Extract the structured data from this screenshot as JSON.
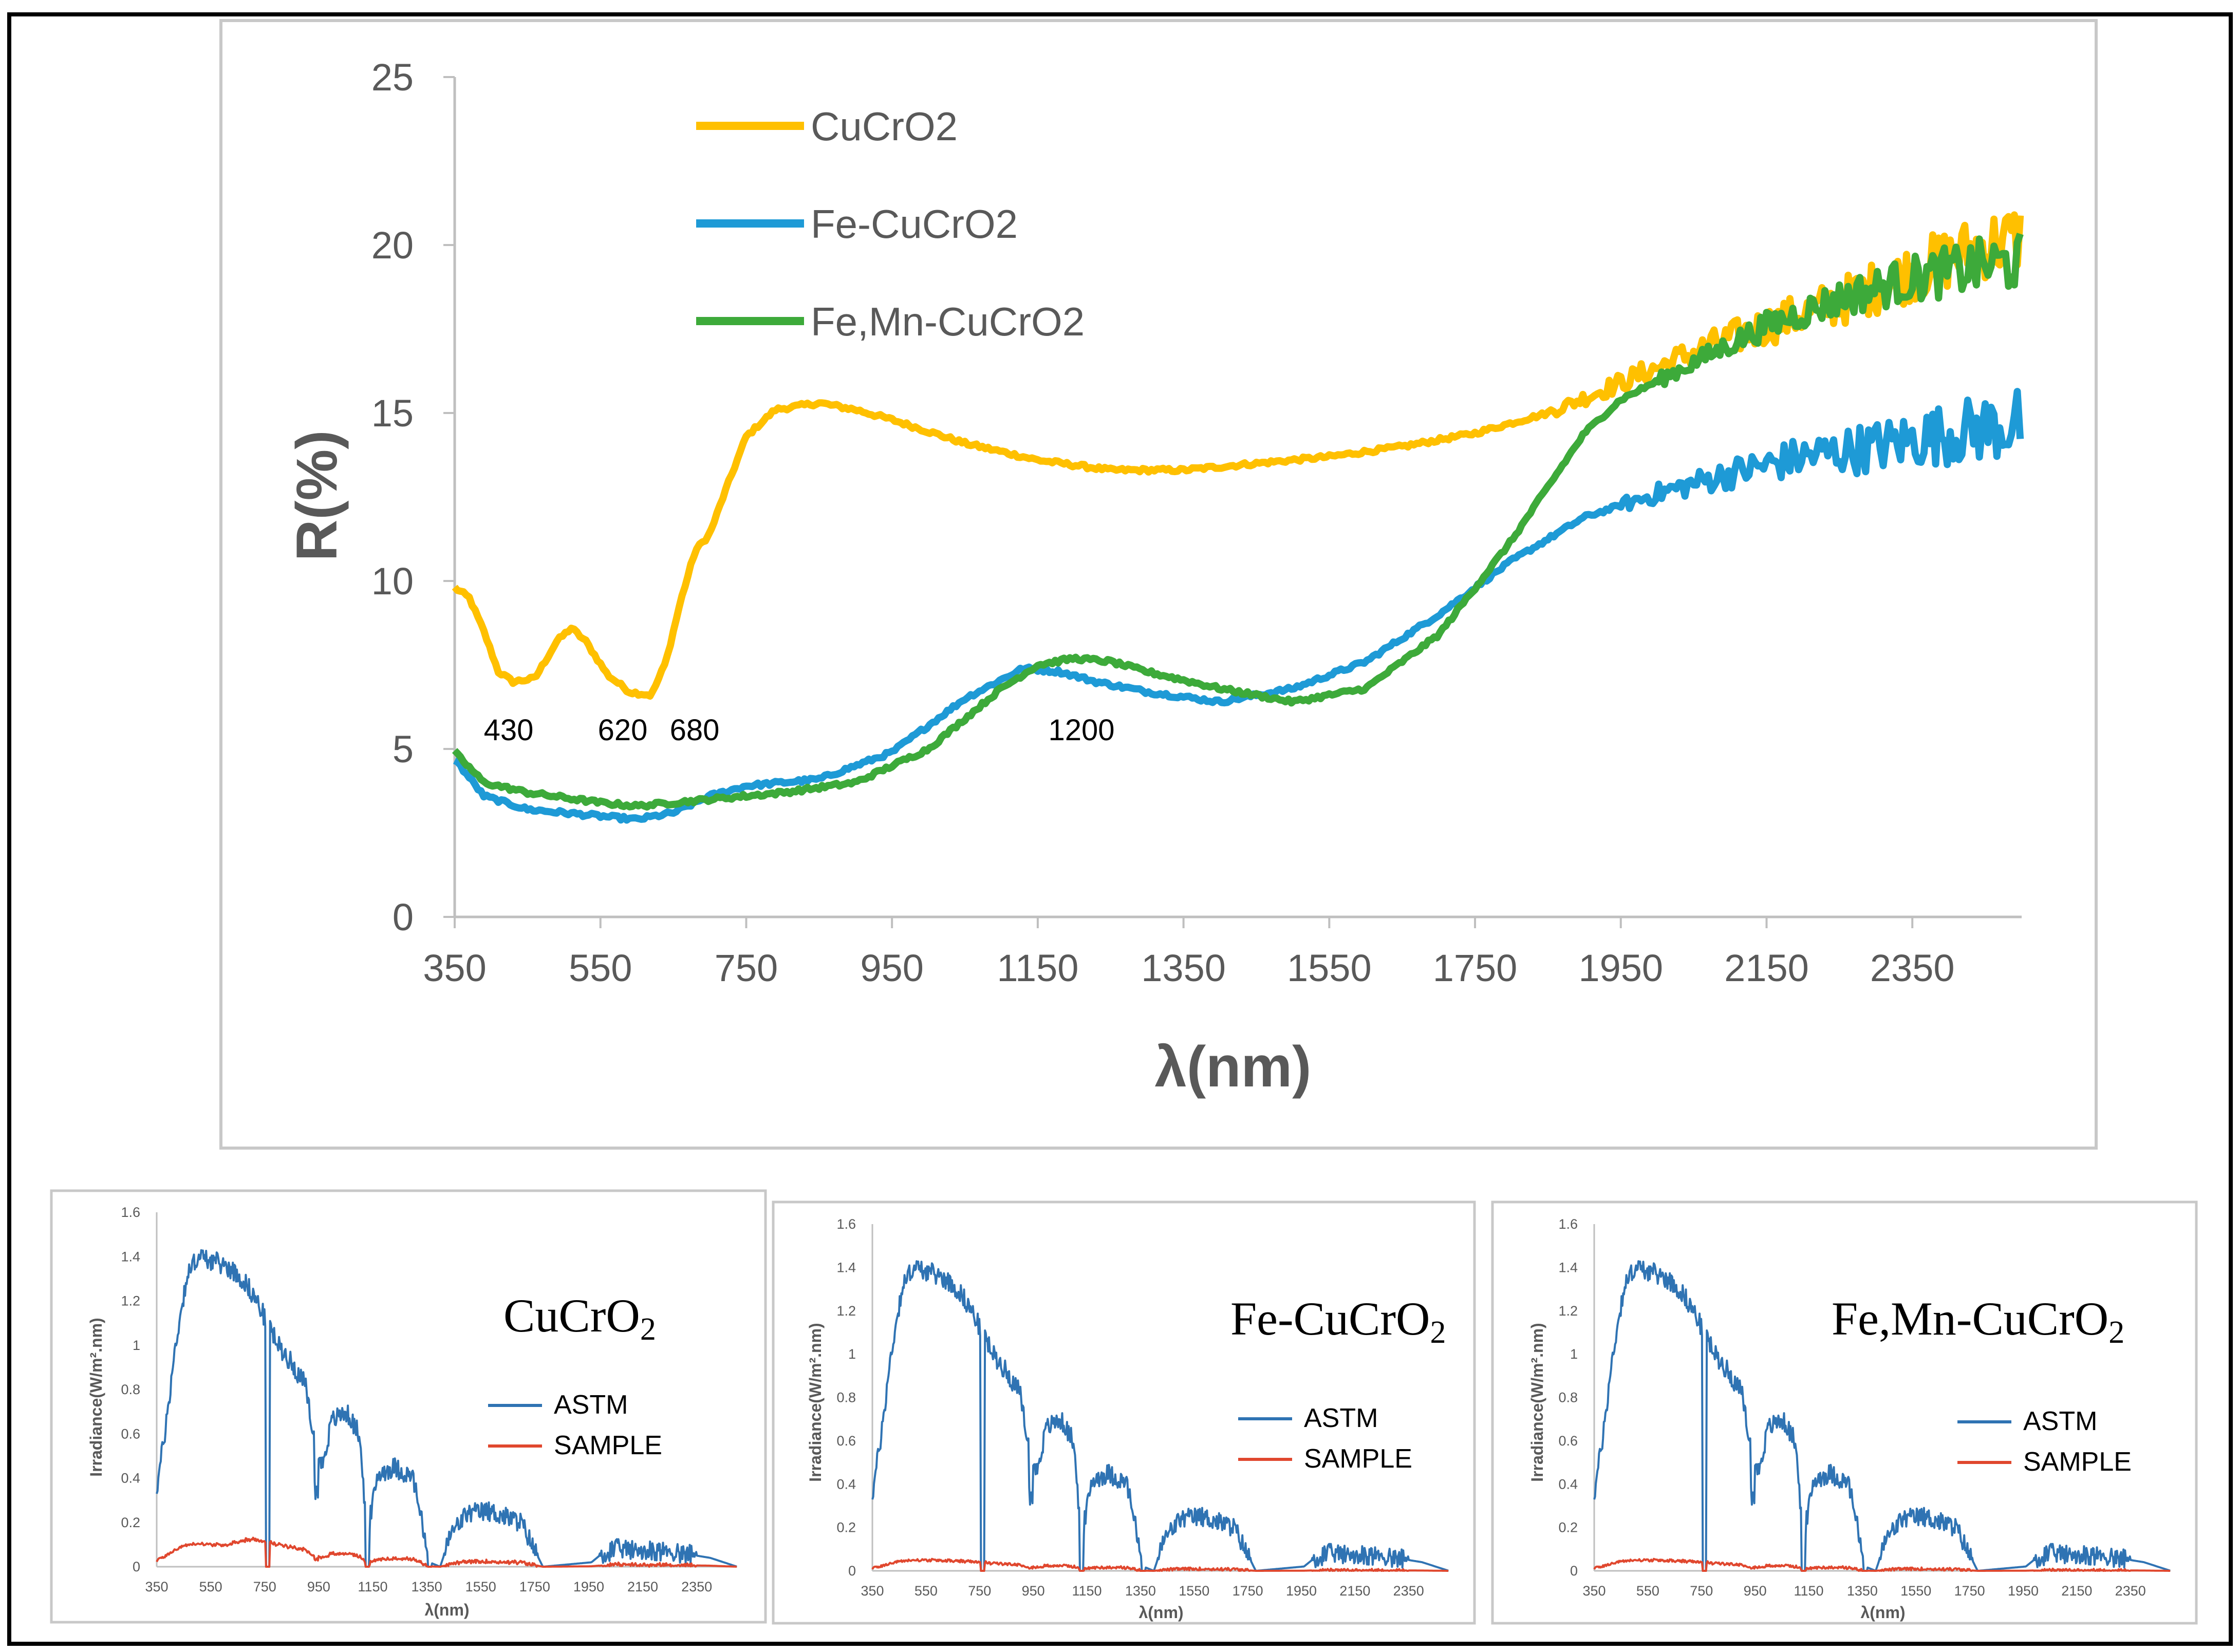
{
  "colors": {
    "cucro2": "#FFC000",
    "fe": "#1E9AD6",
    "femn": "#3DAA3A",
    "astm": "#2F73B3",
    "sample": "#E0472E",
    "axis": "#bfbfbf",
    "text": "#595959"
  },
  "chart_data": [
    {
      "id": "main",
      "type": "line",
      "xlabel": "λ(nm)",
      "ylabel": "R(%)",
      "xlim": [
        350,
        2500
      ],
      "ylim": [
        0,
        25
      ],
      "x_ticks": [
        350,
        550,
        750,
        950,
        1150,
        1350,
        1550,
        1750,
        1950,
        2150,
        2350
      ],
      "y_ticks": [
        0,
        5,
        10,
        15,
        20,
        25
      ],
      "legend_position": "top-left",
      "annotations": [
        {
          "text": "430",
          "x": 430,
          "y": 5.6
        },
        {
          "text": "620",
          "x": 620,
          "y": 5.6
        },
        {
          "text": "680",
          "x": 680,
          "y": 5.6
        },
        {
          "text": "1200",
          "x": 1200,
          "y": 5.6
        }
      ],
      "series": [
        {
          "name": "CuCrO2",
          "color_key": "cucro2",
          "noise_start": 1850,
          "noise_amp": [
            0.3,
            2.2
          ],
          "points": [
            [
              350,
              9.8
            ],
            [
              370,
              9.5
            ],
            [
              390,
              8.5
            ],
            [
              410,
              7.3
            ],
            [
              430,
              7.0
            ],
            [
              460,
              7.1
            ],
            [
              490,
              8.2
            ],
            [
              510,
              8.6
            ],
            [
              530,
              8.2
            ],
            [
              560,
              7.2
            ],
            [
              590,
              6.7
            ],
            [
              620,
              6.6
            ],
            [
              640,
              7.6
            ],
            [
              660,
              9.4
            ],
            [
              680,
              10.9
            ],
            [
              700,
              11.4
            ],
            [
              720,
              12.6
            ],
            [
              750,
              14.3
            ],
            [
              790,
              15.1
            ],
            [
              850,
              15.3
            ],
            [
              900,
              15.1
            ],
            [
              950,
              14.8
            ],
            [
              1050,
              14.1
            ],
            [
              1150,
              13.6
            ],
            [
              1250,
              13.3
            ],
            [
              1350,
              13.3
            ],
            [
              1450,
              13.5
            ],
            [
              1550,
              13.7
            ],
            [
              1650,
              14.0
            ],
            [
              1750,
              14.4
            ],
            [
              1850,
              15.0
            ],
            [
              1950,
              15.9
            ],
            [
              2050,
              16.8
            ],
            [
              2150,
              17.6
            ],
            [
              2250,
              18.3
            ],
            [
              2350,
              19.2
            ],
            [
              2450,
              20.0
            ],
            [
              2500,
              20.2
            ]
          ]
        },
        {
          "name": "Fe-CuCrO2",
          "color_key": "fe",
          "noise_start": 1950,
          "noise_amp": [
            0.4,
            2.2
          ],
          "points": [
            [
              350,
              4.7
            ],
            [
              390,
              3.6
            ],
            [
              450,
              3.2
            ],
            [
              550,
              3.0
            ],
            [
              600,
              2.9
            ],
            [
              650,
              3.1
            ],
            [
              700,
              3.6
            ],
            [
              750,
              3.9
            ],
            [
              850,
              4.1
            ],
            [
              950,
              4.9
            ],
            [
              1050,
              6.5
            ],
            [
              1130,
              7.4
            ],
            [
              1180,
              7.3
            ],
            [
              1230,
              7.0
            ],
            [
              1300,
              6.7
            ],
            [
              1400,
              6.4
            ],
            [
              1500,
              6.8
            ],
            [
              1600,
              7.6
            ],
            [
              1700,
              9.0
            ],
            [
              1800,
              10.6
            ],
            [
              1900,
              11.9
            ],
            [
              2000,
              12.6
            ],
            [
              2100,
              13.2
            ],
            [
              2200,
              13.7
            ],
            [
              2300,
              14.0
            ],
            [
              2400,
              14.4
            ],
            [
              2500,
              14.7
            ]
          ]
        },
        {
          "name": "Fe,Mn-CuCrO2",
          "color_key": "femn",
          "noise_start": 2000,
          "noise_amp": [
            0.4,
            1.8
          ],
          "points": [
            [
              350,
              4.9
            ],
            [
              390,
              4.0
            ],
            [
              450,
              3.7
            ],
            [
              550,
              3.4
            ],
            [
              600,
              3.3
            ],
            [
              650,
              3.4
            ],
            [
              700,
              3.5
            ],
            [
              800,
              3.7
            ],
            [
              900,
              4.0
            ],
            [
              1000,
              5.0
            ],
            [
              1100,
              6.8
            ],
            [
              1150,
              7.5
            ],
            [
              1200,
              7.7
            ],
            [
              1250,
              7.6
            ],
            [
              1300,
              7.3
            ],
            [
              1400,
              6.8
            ],
            [
              1500,
              6.4
            ],
            [
              1600,
              6.8
            ],
            [
              1700,
              8.4
            ],
            [
              1800,
              11.2
            ],
            [
              1900,
              14.4
            ],
            [
              1950,
              15.4
            ],
            [
              2050,
              16.5
            ],
            [
              2150,
              17.6
            ],
            [
              2250,
              18.4
            ],
            [
              2350,
              19.0
            ],
            [
              2450,
              19.4
            ],
            [
              2500,
              19.5
            ]
          ]
        }
      ]
    },
    {
      "id": "small1",
      "type": "line",
      "title": "CuCrO",
      "title_sub": "2",
      "xlabel": "λ(nm)",
      "ylabel": "Irradiance(W/m².nm)",
      "xlim": [
        350,
        2500
      ],
      "ylim": [
        0,
        1.6
      ],
      "x_ticks": [
        350,
        550,
        750,
        950,
        1150,
        1350,
        1550,
        1750,
        1950,
        2150,
        2350
      ],
      "y_ticks": [
        0,
        0.2,
        0.4,
        0.6,
        0.8,
        1,
        1.2,
        1.4,
        1.6
      ],
      "legend_position": "center-right",
      "series": [
        {
          "name": "ASTM",
          "color_key": "astm"
        },
        {
          "name": "SAMPLE",
          "color_key": "sample",
          "scale_profile": "cucro2"
        }
      ]
    },
    {
      "id": "small2",
      "type": "line",
      "title": "Fe-CuCrO",
      "title_sub": "2",
      "xlabel": "λ(nm)",
      "ylabel": "Irradiance(W/m².nm)",
      "xlim": [
        350,
        2500
      ],
      "ylim": [
        0,
        1.6
      ],
      "x_ticks": [
        350,
        550,
        750,
        950,
        1150,
        1350,
        1550,
        1750,
        1950,
        2150,
        2350
      ],
      "y_ticks": [
        0,
        0.2,
        0.4,
        0.6,
        0.8,
        1,
        1.2,
        1.4,
        1.6
      ],
      "legend_position": "center-right",
      "series": [
        {
          "name": "ASTM",
          "color_key": "astm"
        },
        {
          "name": "SAMPLE",
          "color_key": "sample",
          "scale_profile": "fe"
        }
      ]
    },
    {
      "id": "small3",
      "type": "line",
      "title": "Fe,Mn-CuCrO",
      "title_sub": "2",
      "xlabel": "λ(nm)",
      "ylabel": "Irradiance(W/m².nm)",
      "xlim": [
        350,
        2500
      ],
      "ylim": [
        0,
        1.6
      ],
      "x_ticks": [
        350,
        550,
        750,
        950,
        1150,
        1350,
        1550,
        1750,
        1950,
        2150,
        2350
      ],
      "y_ticks": [
        0,
        0.2,
        0.4,
        0.6,
        0.8,
        1,
        1.2,
        1.4,
        1.6
      ],
      "legend_position": "center-right",
      "series": [
        {
          "name": "ASTM",
          "color_key": "astm"
        },
        {
          "name": "SAMPLE",
          "color_key": "sample",
          "scale_profile": "femn"
        }
      ]
    }
  ]
}
